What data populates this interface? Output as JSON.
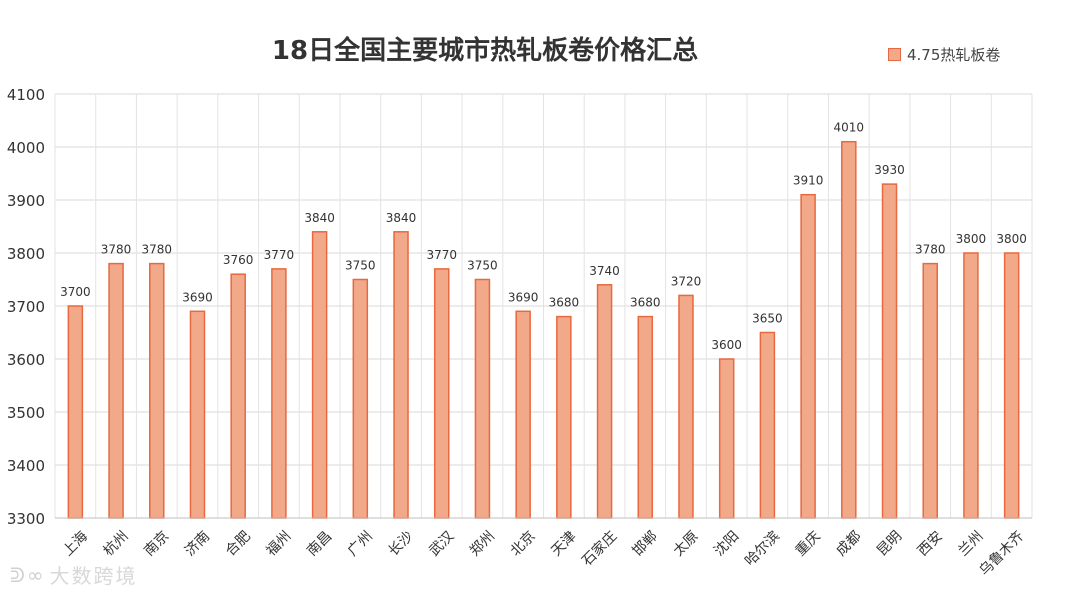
{
  "chart_data": {
    "type": "bar",
    "title": "18日全国主要城市热轧板卷价格汇总",
    "xlabel": "",
    "ylabel": "",
    "ylim": [
      3300,
      4100
    ],
    "yticks": [
      3300,
      3400,
      3500,
      3600,
      3700,
      3800,
      3900,
      4000,
      4100
    ],
    "grid": true,
    "legend_position": "top-right",
    "categories": [
      "上海",
      "杭州",
      "南京",
      "济南",
      "合肥",
      "福州",
      "南昌",
      "广州",
      "长沙",
      "武汉",
      "郑州",
      "北京",
      "天津",
      "石家庄",
      "邯郸",
      "太原",
      "沈阳",
      "哈尔滨",
      "重庆",
      "成都",
      "昆明",
      "西安",
      "兰州",
      "乌鲁木齐"
    ],
    "series": [
      {
        "name": "4.75热轧板卷",
        "values": [
          3700,
          3780,
          3780,
          3690,
          3760,
          3770,
          3840,
          3750,
          3840,
          3770,
          3750,
          3690,
          3680,
          3740,
          3680,
          3720,
          3600,
          3650,
          3910,
          4010,
          3930,
          3780,
          3800,
          3800
        ],
        "fill": "#f2a98a",
        "stroke": "#e8683f"
      }
    ]
  },
  "watermark": {
    "text": "大数跨境",
    "logo": "ᕲ∞"
  }
}
